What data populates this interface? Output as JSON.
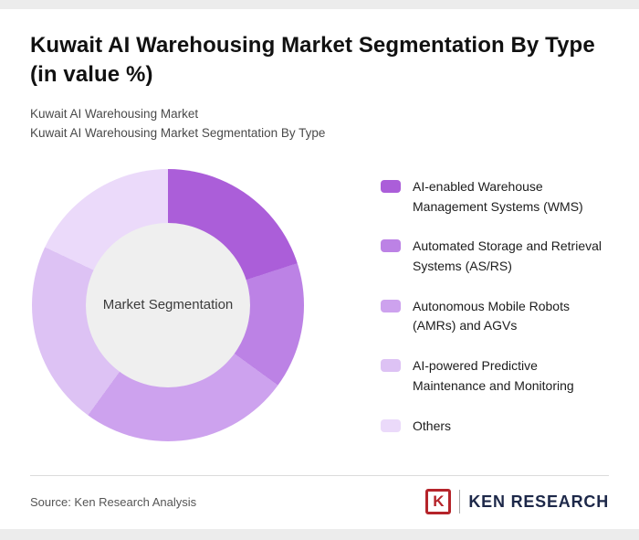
{
  "page": {
    "title": "Kuwait AI Warehousing Market Segmentation By Type (in value %)",
    "subtitle1": "Kuwait AI Warehousing Market",
    "subtitle2": "Kuwait AI Warehousing Market Segmentation By Type",
    "source": "Source: Ken Research Analysis",
    "brand_mark_letter": "K",
    "brand_name": "KEN RESEARCH"
  },
  "chart_data": {
    "type": "pie",
    "donut": true,
    "title": "Kuwait AI Warehousing Market Segmentation By Type (in value %)",
    "center_label": "Market Segmentation",
    "legend_position": "right",
    "center_color": "#efefef",
    "segments": [
      {
        "label": "AI-enabled Warehouse Management Systems (WMS)",
        "value": 20,
        "color": "#ab5ed9"
      },
      {
        "label": "Automated Storage and Retrieval Systems (AS/RS)",
        "value": 15,
        "color": "#bc82e5"
      },
      {
        "label": "Autonomous Mobile Robots (AMRs) and AGVs",
        "value": 25,
        "color": "#cda2ee"
      },
      {
        "label": "AI-powered Predictive Maintenance and Monitoring",
        "value": 22,
        "color": "#ddc2f4"
      },
      {
        "label": "Others",
        "value": 18,
        "color": "#ebdafa"
      }
    ]
  }
}
